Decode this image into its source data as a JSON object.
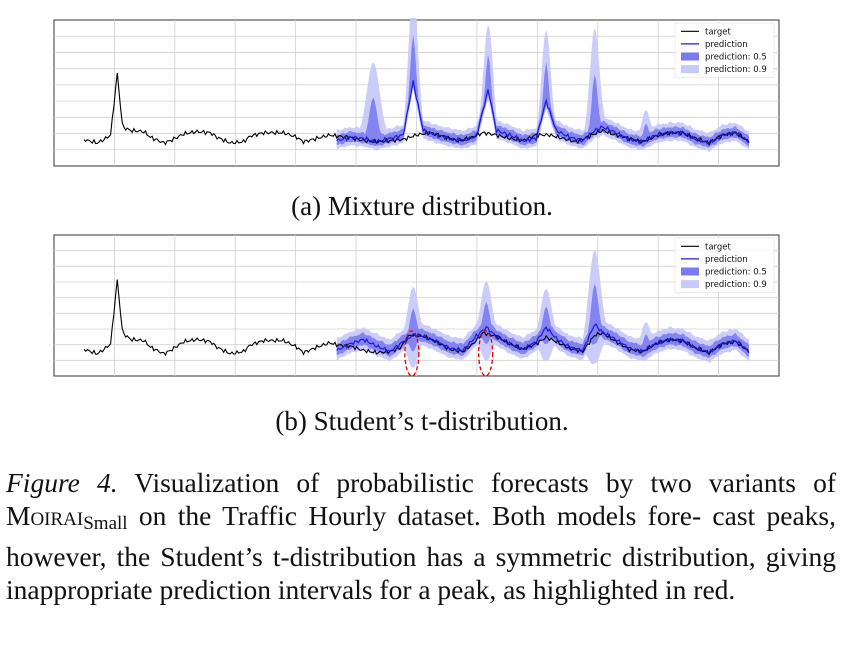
{
  "chart_data": [
    {
      "id": "a",
      "type": "line",
      "title": "",
      "xlabel": "",
      "ylabel": "",
      "grid": true,
      "legend_position": "top-right",
      "legend": [
        "target",
        "prediction",
        "prediction: 0.5",
        "prediction: 0.9"
      ],
      "x_range": [
        0,
        100
      ],
      "y_range": [
        0,
        1
      ],
      "forecast_start": 38,
      "target": [
        [
          0,
          0.04
        ],
        [
          2,
          0.01
        ],
        [
          3,
          0.04
        ],
        [
          4,
          0.08
        ],
        [
          5,
          0.62
        ],
        [
          5.8,
          0.15
        ],
        [
          7,
          0.12
        ],
        [
          9,
          0.11
        ],
        [
          10,
          0.06
        ],
        [
          12,
          0.01
        ],
        [
          13,
          0.03
        ],
        [
          15,
          0.09
        ],
        [
          17,
          0.11
        ],
        [
          19,
          0.1
        ],
        [
          20,
          0.06
        ],
        [
          22,
          0.01
        ],
        [
          24,
          0.02
        ],
        [
          25,
          0.07
        ],
        [
          27,
          0.1
        ],
        [
          30,
          0.1
        ],
        [
          32,
          0.06
        ],
        [
          33,
          0.02
        ],
        [
          35,
          0.05
        ],
        [
          37,
          0.08
        ],
        [
          38,
          0.07
        ],
        [
          40,
          0.06
        ],
        [
          42,
          0.03
        ],
        [
          44,
          0.02
        ],
        [
          46,
          0.03
        ],
        [
          48,
          0.04
        ],
        [
          50,
          0.08
        ],
        [
          52,
          0.1
        ],
        [
          54,
          0.07
        ],
        [
          56,
          0.03
        ],
        [
          58,
          0.05
        ],
        [
          60,
          0.1
        ],
        [
          62,
          0.08
        ],
        [
          64,
          0.05
        ],
        [
          66,
          0.03
        ],
        [
          68,
          0.08
        ],
        [
          70,
          0.08
        ],
        [
          72,
          0.05
        ],
        [
          74,
          0.02
        ],
        [
          76,
          0.07
        ],
        [
          78,
          0.12
        ],
        [
          80,
          0.08
        ],
        [
          82,
          0.05
        ],
        [
          84,
          0.02
        ],
        [
          86,
          0.07
        ],
        [
          88,
          0.1
        ],
        [
          90,
          0.1
        ],
        [
          92,
          0.05
        ],
        [
          94,
          0.01
        ],
        [
          96,
          0.08
        ],
        [
          98,
          0.1
        ],
        [
          100,
          0.02
        ]
      ],
      "prediction": [
        [
          38,
          0.03
        ],
        [
          40,
          0.06
        ],
        [
          42,
          0.05
        ],
        [
          44,
          0.02
        ],
        [
          46,
          0.05
        ],
        [
          48,
          0.08
        ],
        [
          49.5,
          0.55
        ],
        [
          51,
          0.12
        ],
        [
          53,
          0.08
        ],
        [
          55,
          0.05
        ],
        [
          57,
          0.03
        ],
        [
          59,
          0.07
        ],
        [
          60.8,
          0.48
        ],
        [
          62,
          0.12
        ],
        [
          64,
          0.08
        ],
        [
          66,
          0.03
        ],
        [
          68,
          0.05
        ],
        [
          69.5,
          0.38
        ],
        [
          71,
          0.12
        ],
        [
          73,
          0.06
        ],
        [
          75,
          0.03
        ],
        [
          76.8,
          0.12
        ],
        [
          78,
          0.15
        ],
        [
          80,
          0.1
        ],
        [
          82,
          0.04
        ],
        [
          84,
          0.02
        ],
        [
          86,
          0.08
        ],
        [
          88,
          0.1
        ],
        [
          90,
          0.1
        ],
        [
          92,
          0.04
        ],
        [
          94,
          0.01
        ],
        [
          96,
          0.08
        ],
        [
          98,
          0.1
        ],
        [
          100,
          0.02
        ]
      ],
      "peaks": [
        [
          43.5,
          0.72,
          0.03,
          1.4
        ],
        [
          49.5,
          1.3,
          0.25,
          0.9
        ],
        [
          60.8,
          1.05,
          0.2,
          0.85
        ],
        [
          69.5,
          1.0,
          0.18,
          0.85
        ],
        [
          76.8,
          1.02,
          0.1,
          1.0
        ],
        [
          84.5,
          0.3,
          0.02,
          0.9
        ]
      ],
      "base_band": [
        0.04,
        0.08
      ]
    },
    {
      "id": "b",
      "type": "line",
      "title": "",
      "xlabel": "",
      "ylabel": "",
      "grid": true,
      "legend_position": "top-right",
      "legend": [
        "target",
        "prediction",
        "prediction: 0.5",
        "prediction: 0.9"
      ],
      "x_range": [
        0,
        100
      ],
      "y_range": [
        0,
        1
      ],
      "forecast_start": 38,
      "target": [
        [
          0,
          0.05
        ],
        [
          2,
          0.01
        ],
        [
          3,
          0.05
        ],
        [
          4,
          0.1
        ],
        [
          5,
          0.68
        ],
        [
          5.8,
          0.2
        ],
        [
          7,
          0.14
        ],
        [
          9,
          0.13
        ],
        [
          10,
          0.07
        ],
        [
          12,
          0.01
        ],
        [
          13,
          0.04
        ],
        [
          15,
          0.12
        ],
        [
          17,
          0.14
        ],
        [
          19,
          0.12
        ],
        [
          20,
          0.07
        ],
        [
          22,
          0.01
        ],
        [
          24,
          0.03
        ],
        [
          25,
          0.09
        ],
        [
          27,
          0.13
        ],
        [
          30,
          0.13
        ],
        [
          32,
          0.07
        ],
        [
          33,
          0.02
        ],
        [
          35,
          0.07
        ],
        [
          37,
          0.11
        ],
        [
          38,
          0.09
        ],
        [
          40,
          0.08
        ],
        [
          42,
          0.04
        ],
        [
          44,
          0.02
        ],
        [
          46,
          0.03
        ],
        [
          47.5,
          0.06
        ],
        [
          49,
          0.18
        ],
        [
          51,
          0.17
        ],
        [
          53,
          0.12
        ],
        [
          55,
          0.05
        ],
        [
          57,
          0.03
        ],
        [
          58.5,
          0.1
        ],
        [
          60,
          0.2
        ],
        [
          62,
          0.17
        ],
        [
          64,
          0.1
        ],
        [
          66,
          0.05
        ],
        [
          68,
          0.1
        ],
        [
          69.5,
          0.16
        ],
        [
          71,
          0.12
        ],
        [
          73,
          0.06
        ],
        [
          75,
          0.03
        ],
        [
          76.8,
          0.18
        ],
        [
          78,
          0.2
        ],
        [
          80,
          0.12
        ],
        [
          82,
          0.05
        ],
        [
          84,
          0.03
        ],
        [
          86,
          0.1
        ],
        [
          88,
          0.14
        ],
        [
          90,
          0.13
        ],
        [
          92,
          0.06
        ],
        [
          94,
          0.02
        ],
        [
          96,
          0.1
        ],
        [
          98,
          0.12
        ],
        [
          100,
          0.03
        ]
      ],
      "prediction": [
        [
          38,
          0.04
        ],
        [
          40,
          0.1
        ],
        [
          42,
          0.14
        ],
        [
          44,
          0.08
        ],
        [
          46,
          0.03
        ],
        [
          48,
          0.12
        ],
        [
          49.5,
          0.18
        ],
        [
          51,
          0.17
        ],
        [
          53,
          0.12
        ],
        [
          55,
          0.06
        ],
        [
          57,
          0.04
        ],
        [
          59,
          0.17
        ],
        [
          60.5,
          0.25
        ],
        [
          62,
          0.17
        ],
        [
          64,
          0.1
        ],
        [
          66,
          0.05
        ],
        [
          68,
          0.12
        ],
        [
          69.5,
          0.25
        ],
        [
          71,
          0.15
        ],
        [
          73,
          0.07
        ],
        [
          75,
          0.04
        ],
        [
          76.8,
          0.28
        ],
        [
          78,
          0.2
        ],
        [
          80,
          0.14
        ],
        [
          82,
          0.06
        ],
        [
          84,
          0.03
        ],
        [
          86,
          0.1
        ],
        [
          88,
          0.14
        ],
        [
          90,
          0.13
        ],
        [
          92,
          0.06
        ],
        [
          94,
          0.02
        ],
        [
          96,
          0.1
        ],
        [
          98,
          0.13
        ],
        [
          100,
          0.03
        ]
      ],
      "peaks": [
        [
          49.5,
          0.62,
          0.3,
          1.1
        ],
        [
          60.5,
          0.67,
          0.3,
          1.1
        ],
        [
          69.5,
          0.6,
          0.3,
          1.1
        ],
        [
          76.8,
          0.95,
          0.35,
          1.2
        ],
        [
          84.5,
          0.3,
          0.1,
          1.0
        ]
      ],
      "base_band": [
        0.05,
        0.1
      ],
      "highlights": [
        [
          49.3,
          -0.1,
          1.2,
          0.3
        ],
        [
          60.4,
          -0.1,
          1.2,
          0.3
        ]
      ]
    }
  ],
  "captions": {
    "a": "(a) Mixture distribution.",
    "b": "(b) Student’s t-distribution.",
    "figure_label": "Figure 4.",
    "figure_text_1": " Visualization of probabilistic forecasts by two variants of ",
    "model_name": "Moirai",
    "model_sub": "Small",
    "figure_text_2": " on the Traffic Hourly dataset. Both models fore- cast peaks, however, the Student’s t-distribution has a symmetric distribution, giving inappropriate prediction intervals for a peak, as highlighted in red."
  },
  "colors": {
    "target": "#000000",
    "prediction": "#1a1adc",
    "band_50": "#7b7bef",
    "band_90": "#c9c9fa",
    "highlight": "#e00000"
  }
}
